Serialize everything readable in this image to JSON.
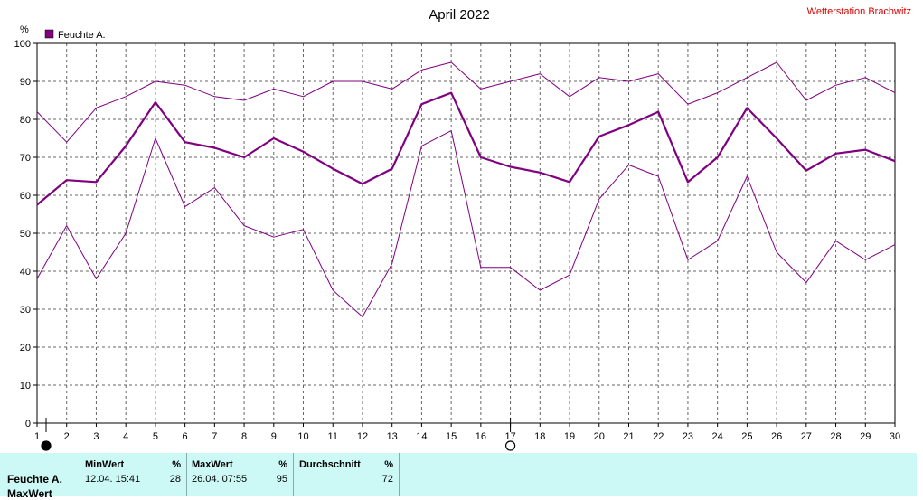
{
  "chart_data": {
    "type": "line",
    "title": "April 2022",
    "station": "Wetterstation Brachwitz",
    "yunit": "%",
    "legend": "Feuchte A.",
    "xlim": [
      1,
      30
    ],
    "ylim": [
      0,
      100
    ],
    "x": [
      1,
      2,
      3,
      4,
      5,
      6,
      7,
      8,
      9,
      10,
      11,
      12,
      13,
      14,
      15,
      16,
      17,
      18,
      19,
      20,
      21,
      22,
      23,
      24,
      25,
      26,
      27,
      28,
      29,
      30
    ],
    "yticks": [
      0,
      10,
      20,
      30,
      40,
      50,
      60,
      70,
      80,
      90,
      100
    ],
    "series": [
      {
        "values": [
          82,
          74,
          83,
          86,
          90,
          89,
          86,
          85,
          88,
          86,
          90,
          90,
          88,
          93,
          95,
          88,
          90,
          92,
          86,
          91,
          90,
          92,
          84,
          87,
          91,
          95,
          85,
          89,
          91,
          87
        ]
      },
      {
        "values": [
          57.5,
          64,
          63.5,
          73,
          84.5,
          74,
          72.5,
          70,
          75,
          71.5,
          67,
          63,
          67,
          84,
          87,
          70,
          67.5,
          66,
          63.5,
          75.5,
          78.5,
          82,
          63.5,
          70,
          83,
          75,
          66.5,
          71,
          72,
          69
        ]
      },
      {
        "values": [
          38,
          52,
          38,
          50,
          75,
          57,
          62,
          52,
          49,
          51,
          35,
          28,
          42,
          73,
          77,
          41,
          41,
          35,
          39,
          59,
          68,
          65,
          43,
          48,
          65,
          45,
          37,
          48,
          43,
          47
        ]
      }
    ],
    "color": "#800080",
    "markers": [
      {
        "x": 1,
        "style": "filled"
      },
      {
        "x": 17,
        "style": "open"
      }
    ]
  },
  "footer": {
    "row_label": "Feuchte A.",
    "row_label2": "MaxWert",
    "min_label": "MinWert",
    "min_unit": "%",
    "min_time": "12.04.  15:41",
    "min_value": "28",
    "max_label": "MaxWert",
    "max_unit": "%",
    "max_time": "26.04.  07:55",
    "max_value": "95",
    "avg_label": "Durchschnitt",
    "avg_unit": "%",
    "avg_value": "72"
  }
}
